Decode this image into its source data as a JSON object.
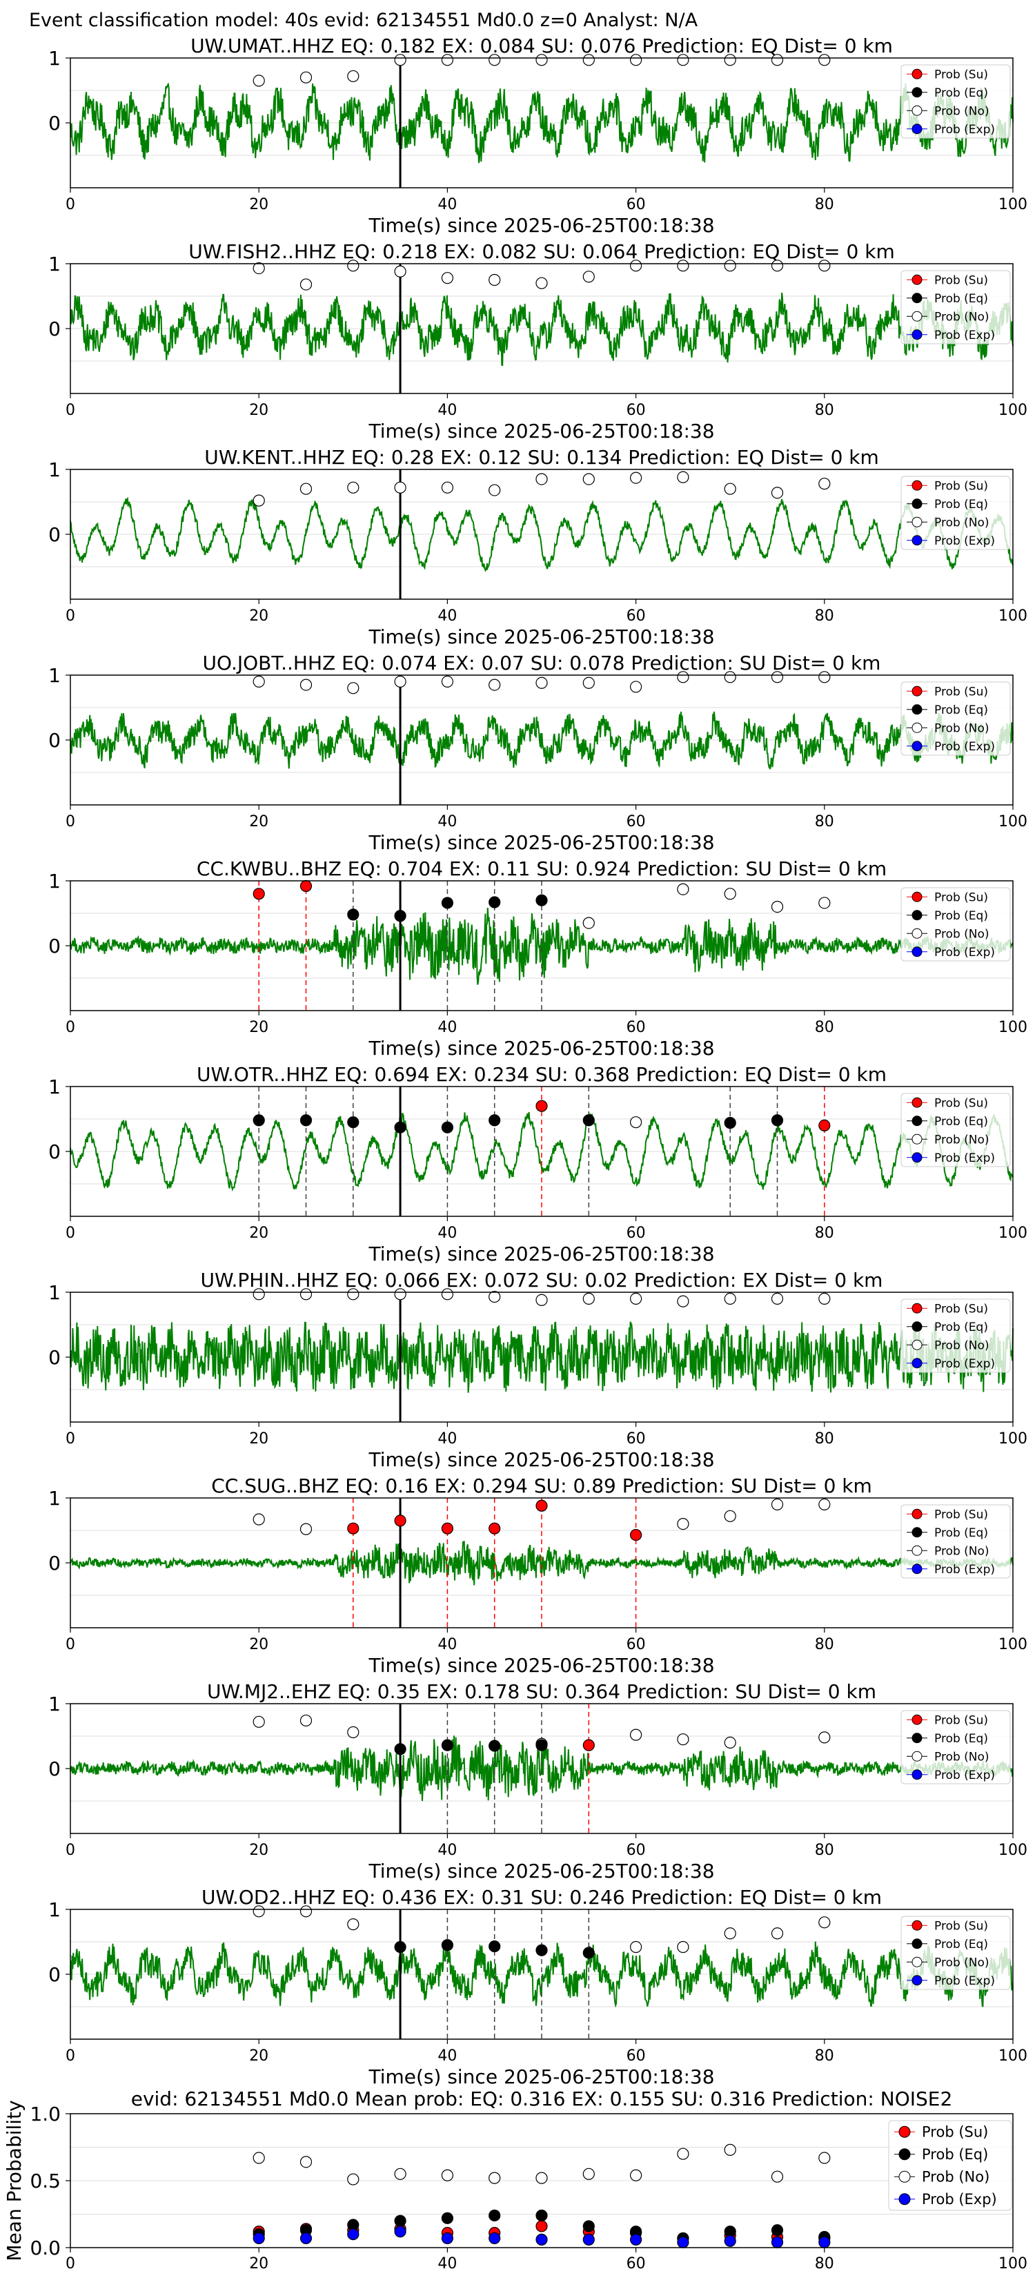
{
  "figure_title": "Event classification model: 40s evid: 62134551 Md0.0 z=0 Analyst: N/A",
  "legend": {
    "entries": [
      {
        "label": "Prob (Su)",
        "color": "#ff0000",
        "filled": true
      },
      {
        "label": "Prob (Eq)",
        "color": "#000000",
        "filled": true
      },
      {
        "label": "Prob (No)",
        "color": "#ffffff",
        "filled": false
      },
      {
        "label": "Prob (Exp)",
        "color": "#0000ff",
        "filled": true
      }
    ]
  },
  "colors": {
    "waveform": "#008000",
    "su": "#ff0000",
    "eq": "#000000",
    "no": "#ffffff",
    "exp": "#0000ff",
    "arrival_line": "#000000",
    "su_line": "#ff0000",
    "eq_line": "#404040"
  },
  "chart_data": [
    {
      "type": "line",
      "title": "UW.UMAT..HHZ   EQ: 0.182  EX: 0.084  SU: 0.076   Prediction: EQ    Dist= 0 km",
      "xlabel": "Time(s) since 2025-06-25T00:18:38",
      "xlim": [
        0,
        100
      ],
      "ylim": [
        -1,
        1
      ],
      "xticks": [
        "0",
        "20",
        "40",
        "60",
        "80",
        "100"
      ],
      "yticks": [
        "1",
        "0"
      ],
      "arrival_time": 35,
      "wave_style": "mixed",
      "wave_amp": 0.55,
      "no_points": [
        [
          20,
          0.65
        ],
        [
          25,
          0.7
        ],
        [
          30,
          0.72
        ],
        [
          35,
          0.97
        ],
        [
          40,
          0.97
        ],
        [
          45,
          0.97
        ],
        [
          50,
          0.97
        ],
        [
          55,
          0.97
        ],
        [
          60,
          0.97
        ],
        [
          65,
          0.97
        ],
        [
          70,
          0.97
        ],
        [
          75,
          0.97
        ],
        [
          80,
          0.97
        ]
      ],
      "eq_points": [],
      "su_points": [],
      "exp_points": []
    },
    {
      "type": "line",
      "title": "UW.FISH2..HHZ   EQ: 0.218  EX: 0.082  SU: 0.064   Prediction: EQ    Dist= 0 km",
      "xlabel": "Time(s) since 2025-06-25T00:18:38",
      "xlim": [
        0,
        100
      ],
      "ylim": [
        -1,
        1
      ],
      "xticks": [
        "0",
        "20",
        "40",
        "60",
        "80",
        "100"
      ],
      "yticks": [
        "1",
        "0"
      ],
      "arrival_time": 35,
      "wave_style": "mixed",
      "wave_amp": 0.5,
      "no_points": [
        [
          20,
          0.93
        ],
        [
          25,
          0.68
        ],
        [
          30,
          0.97
        ],
        [
          35,
          0.88
        ],
        [
          40,
          0.78
        ],
        [
          45,
          0.75
        ],
        [
          50,
          0.7
        ],
        [
          55,
          0.8
        ],
        [
          60,
          0.97
        ],
        [
          65,
          0.97
        ],
        [
          70,
          0.97
        ],
        [
          75,
          0.97
        ],
        [
          80,
          0.97
        ]
      ],
      "eq_points": [],
      "su_points": [],
      "exp_points": []
    },
    {
      "type": "line",
      "title": "UW.KENT..HHZ   EQ: 0.28  EX: 0.12  SU: 0.134   Prediction: EQ    Dist= 0 km",
      "xlabel": "Time(s) since 2025-06-25T00:18:38",
      "xlim": [
        0,
        100
      ],
      "ylim": [
        -1,
        1
      ],
      "xticks": [
        "0",
        "20",
        "40",
        "60",
        "80",
        "100"
      ],
      "yticks": [
        "1",
        "0"
      ],
      "arrival_time": 35,
      "wave_style": "smooth",
      "wave_amp": 0.55,
      "no_points": [
        [
          20,
          0.52
        ],
        [
          25,
          0.7
        ],
        [
          30,
          0.72
        ],
        [
          35,
          0.72
        ],
        [
          40,
          0.72
        ],
        [
          45,
          0.68
        ],
        [
          50,
          0.85
        ],
        [
          55,
          0.85
        ],
        [
          60,
          0.87
        ],
        [
          65,
          0.88
        ],
        [
          70,
          0.7
        ],
        [
          75,
          0.64
        ],
        [
          80,
          0.78
        ]
      ],
      "eq_points": [],
      "su_points": [],
      "exp_points": []
    },
    {
      "type": "line",
      "title": "UO.JOBT..HHZ   EQ: 0.074  EX: 0.07  SU: 0.078   Prediction: SU    Dist= 0 km",
      "xlabel": "Time(s) since 2025-06-25T00:18:38",
      "xlim": [
        0,
        100
      ],
      "ylim": [
        -1,
        1
      ],
      "xticks": [
        "0",
        "20",
        "40",
        "60",
        "80",
        "100"
      ],
      "yticks": [
        "1",
        "0"
      ],
      "arrival_time": 35,
      "wave_style": "mixed",
      "wave_amp": 0.4,
      "no_points": [
        [
          20,
          0.9
        ],
        [
          25,
          0.85
        ],
        [
          30,
          0.8
        ],
        [
          35,
          0.9
        ],
        [
          40,
          0.9
        ],
        [
          45,
          0.85
        ],
        [
          50,
          0.88
        ],
        [
          55,
          0.88
        ],
        [
          60,
          0.82
        ],
        [
          65,
          0.97
        ],
        [
          70,
          0.97
        ],
        [
          75,
          0.97
        ],
        [
          80,
          0.97
        ]
      ],
      "eq_points": [],
      "su_points": [],
      "exp_points": []
    },
    {
      "type": "line",
      "title": "CC.KWBU..BHZ   EQ: 0.704  EX: 0.11  SU: 0.924   Prediction: SU    Dist= 0 km",
      "xlabel": "Time(s) since 2025-06-25T00:18:38",
      "xlim": [
        0,
        100
      ],
      "ylim": [
        -1,
        1
      ],
      "xticks": [
        "0",
        "20",
        "40",
        "60",
        "80",
        "100"
      ],
      "yticks": [
        "1",
        "0"
      ],
      "arrival_time": 35,
      "wave_style": "burst",
      "wave_amp": 0.35,
      "no_points": [
        [
          55,
          0.35
        ],
        [
          65,
          0.87
        ],
        [
          70,
          0.8
        ],
        [
          75,
          0.6
        ],
        [
          80,
          0.66
        ]
      ],
      "eq_points": [
        [
          30,
          0.48
        ],
        [
          35,
          0.46
        ],
        [
          40,
          0.66
        ],
        [
          45,
          0.67
        ],
        [
          50,
          0.7
        ]
      ],
      "su_points": [
        [
          20,
          0.8
        ],
        [
          25,
          0.92
        ]
      ],
      "exp_points": []
    },
    {
      "type": "line",
      "title": "UW.OTR..HHZ   EQ: 0.694  EX: 0.234  SU: 0.368   Prediction: EQ    Dist= 0 km",
      "xlabel": "Time(s) since 2025-06-25T00:18:38",
      "xlim": [
        0,
        100
      ],
      "ylim": [
        -1,
        1
      ],
      "xticks": [
        "0",
        "20",
        "40",
        "60",
        "80",
        "100"
      ],
      "yticks": [
        "1",
        "0"
      ],
      "arrival_time": 35,
      "wave_style": "smooth",
      "wave_amp": 0.6,
      "no_points": [
        [
          60,
          0.45
        ]
      ],
      "eq_points": [
        [
          20,
          0.48
        ],
        [
          25,
          0.48
        ],
        [
          30,
          0.45
        ],
        [
          35,
          0.37
        ],
        [
          40,
          0.37
        ],
        [
          45,
          0.48
        ],
        [
          55,
          0.48
        ],
        [
          70,
          0.44
        ],
        [
          75,
          0.48
        ]
      ],
      "su_points": [
        [
          50,
          0.7
        ],
        [
          80,
          0.4
        ]
      ],
      "exp_points": []
    },
    {
      "type": "line",
      "title": "UW.PHIN..HHZ   EQ: 0.066  EX: 0.072  SU: 0.02   Prediction: EX    Dist= 0 km",
      "xlabel": "Time(s) since 2025-06-25T00:18:38",
      "xlim": [
        0,
        100
      ],
      "ylim": [
        -1,
        1
      ],
      "xticks": [
        "0",
        "20",
        "40",
        "60",
        "80",
        "100"
      ],
      "yticks": [
        "1",
        "0"
      ],
      "arrival_time": 35,
      "wave_style": "noisy",
      "wave_amp": 0.5,
      "no_points": [
        [
          20,
          0.97
        ],
        [
          25,
          0.97
        ],
        [
          30,
          0.97
        ],
        [
          35,
          0.97
        ],
        [
          40,
          0.97
        ],
        [
          45,
          0.93
        ],
        [
          50,
          0.88
        ],
        [
          55,
          0.9
        ],
        [
          60,
          0.9
        ],
        [
          65,
          0.86
        ],
        [
          70,
          0.9
        ],
        [
          75,
          0.9
        ],
        [
          80,
          0.9
        ]
      ],
      "eq_points": [],
      "su_points": [],
      "exp_points": []
    },
    {
      "type": "line",
      "title": "CC.SUG..BHZ   EQ: 0.16  EX: 0.294  SU: 0.89   Prediction: SU    Dist= 0 km",
      "xlabel": "Time(s) since 2025-06-25T00:18:38",
      "xlim": [
        0,
        100
      ],
      "ylim": [
        -1,
        1
      ],
      "xticks": [
        "0",
        "20",
        "40",
        "60",
        "80",
        "100"
      ],
      "yticks": [
        "1",
        "0"
      ],
      "arrival_time": 35,
      "wave_style": "burst",
      "wave_amp": 0.2,
      "no_points": [
        [
          20,
          0.67
        ],
        [
          25,
          0.52
        ],
        [
          65,
          0.6
        ],
        [
          70,
          0.72
        ],
        [
          75,
          0.9
        ],
        [
          80,
          0.9
        ]
      ],
      "eq_points": [],
      "su_points": [
        [
          30,
          0.53
        ],
        [
          35,
          0.65
        ],
        [
          40,
          0.53
        ],
        [
          45,
          0.53
        ],
        [
          50,
          0.88
        ],
        [
          60,
          0.43
        ]
      ],
      "exp_points": []
    },
    {
      "type": "line",
      "title": "UW.MJ2..EHZ   EQ: 0.35  EX: 0.178  SU: 0.364   Prediction: SU    Dist= 0 km",
      "xlabel": "Time(s) since 2025-06-25T00:18:38",
      "xlim": [
        0,
        100
      ],
      "ylim": [
        -1,
        1
      ],
      "xticks": [
        "0",
        "20",
        "40",
        "60",
        "80",
        "100"
      ],
      "yticks": [
        "1",
        "0"
      ],
      "arrival_time": 35,
      "wave_style": "burst",
      "wave_amp": 0.3,
      "no_points": [
        [
          20,
          0.72
        ],
        [
          25,
          0.74
        ],
        [
          30,
          0.56
        ],
        [
          50,
          0.38
        ],
        [
          60,
          0.52
        ],
        [
          65,
          0.45
        ],
        [
          70,
          0.4
        ],
        [
          80,
          0.48
        ]
      ],
      "eq_points": [
        [
          35,
          0.3
        ],
        [
          40,
          0.36
        ],
        [
          45,
          0.35
        ],
        [
          50,
          0.36
        ]
      ],
      "su_points": [
        [
          55,
          0.36
        ]
      ],
      "exp_points": []
    },
    {
      "type": "line",
      "title": "UW.OD2..HHZ   EQ: 0.436  EX: 0.31  SU: 0.246   Prediction: EQ    Dist= 0 km",
      "xlabel": "Time(s) since 2025-06-25T00:18:38",
      "xlim": [
        0,
        100
      ],
      "ylim": [
        -1,
        1
      ],
      "xticks": [
        "0",
        "20",
        "40",
        "60",
        "80",
        "100"
      ],
      "yticks": [
        "1",
        "0"
      ],
      "arrival_time": 35,
      "wave_style": "mixed",
      "wave_amp": 0.45,
      "no_points": [
        [
          20,
          0.97
        ],
        [
          25,
          0.97
        ],
        [
          30,
          0.77
        ],
        [
          60,
          0.42
        ],
        [
          65,
          0.42
        ],
        [
          70,
          0.63
        ],
        [
          75,
          0.63
        ],
        [
          80,
          0.8
        ]
      ],
      "eq_points": [
        [
          35,
          0.42
        ],
        [
          40,
          0.45
        ],
        [
          45,
          0.43
        ],
        [
          50,
          0.37
        ],
        [
          55,
          0.33
        ]
      ],
      "su_points": [],
      "exp_points": []
    },
    {
      "type": "scatter",
      "title": "evid: 62134551  Md0.0   Mean prob:   EQ: 0.316  EX: 0.155  SU: 0.316   Prediction: NOISE2",
      "xlabel": "",
      "ylabel": "Mean Probability",
      "xlim": [
        0,
        100
      ],
      "ylim": [
        0,
        1
      ],
      "xticks": [
        "0",
        "20",
        "40",
        "60",
        "80",
        "100"
      ],
      "yticks": [
        "1.0",
        "0.5",
        "0.0"
      ],
      "x": [
        20,
        25,
        30,
        35,
        40,
        45,
        50,
        55,
        60,
        65,
        70,
        75,
        80
      ],
      "series": [
        {
          "name": "Prob (Su)",
          "values": [
            0.12,
            0.14,
            0.13,
            0.14,
            0.11,
            0.11,
            0.16,
            0.12,
            0.11,
            0.07,
            0.09,
            0.08,
            0.07
          ]
        },
        {
          "name": "Prob (Eq)",
          "values": [
            0.1,
            0.13,
            0.17,
            0.2,
            0.22,
            0.24,
            0.24,
            0.16,
            0.12,
            0.07,
            0.12,
            0.13,
            0.08
          ]
        },
        {
          "name": "Prob (No)",
          "values": [
            0.67,
            0.64,
            0.51,
            0.55,
            0.54,
            0.52,
            0.52,
            0.55,
            0.54,
            0.7,
            0.73,
            0.53,
            0.67
          ]
        },
        {
          "name": "Prob (Exp)",
          "values": [
            0.07,
            0.07,
            0.1,
            0.12,
            0.07,
            0.07,
            0.06,
            0.06,
            0.06,
            0.04,
            0.05,
            0.04,
            0.04
          ]
        }
      ]
    }
  ]
}
